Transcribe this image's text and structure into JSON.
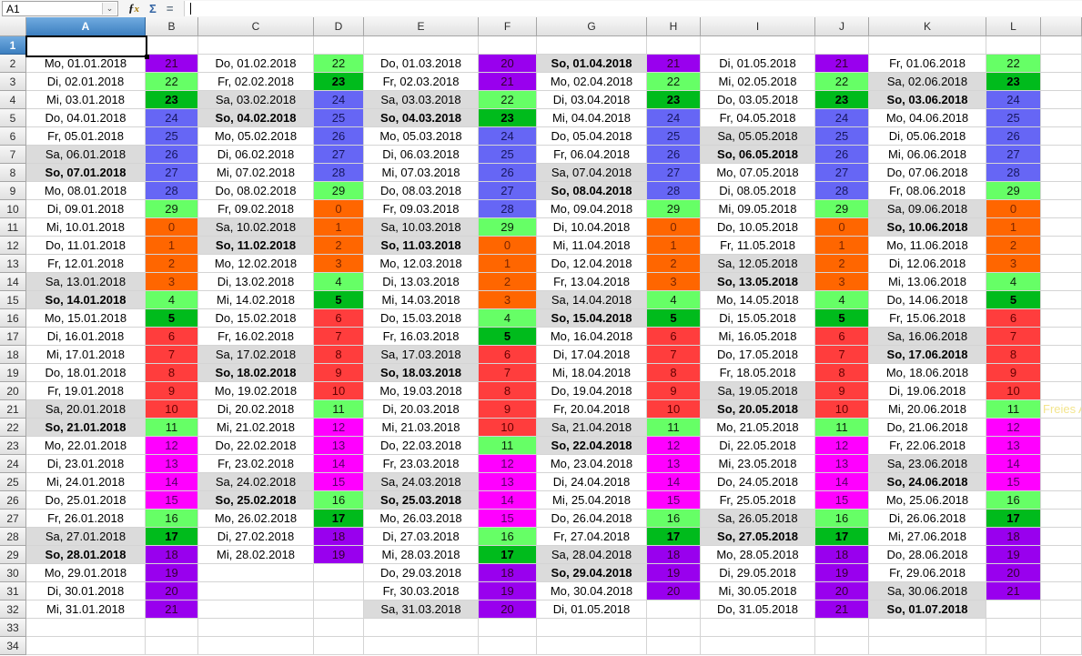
{
  "app": {
    "name_box_value": "A1",
    "formula_input_value": "",
    "icons": {
      "function_wizard": "fx",
      "sum": "Σ",
      "formula": "=",
      "namebox_dropdown": "⌄"
    }
  },
  "grid": {
    "column_headers": [
      "A",
      "B",
      "C",
      "D",
      "E",
      "F",
      "G",
      "H",
      "I",
      "J",
      "K",
      "L"
    ],
    "selected_column": "A",
    "selected_row": 1,
    "visible_rows": 34,
    "selected_cell": "A1"
  },
  "palette": {
    "orange": "#FF6600",
    "red": "#FF3D3D",
    "magenta": "#FF00FF",
    "purple": "#9900EE",
    "blue": "#6666F5",
    "lgreen": "#66FF66",
    "green": "#00BB1C",
    "weekend_gray": "#DBDBDB",
    "note_yellow": "#F3E58E"
  },
  "value_colors": {
    "0": "orange",
    "1": "orange",
    "2": "orange",
    "3": "orange",
    "4": "lgreen",
    "5": "green",
    "6": "red",
    "7": "red",
    "8": "red",
    "9": "red",
    "10": "red",
    "11": "lgreen",
    "12": "magenta",
    "13": "magenta",
    "14": "magenta",
    "15": "magenta",
    "16": "lgreen",
    "17": "green",
    "18": "purple",
    "19": "purple",
    "20": "purple",
    "21": "purple",
    "22": "lgreen",
    "23": "green",
    "24": "blue",
    "25": "blue",
    "26": "blue",
    "27": "blue",
    "28": "blue",
    "29": "lgreen"
  },
  "bold_values": [
    5,
    17,
    23
  ],
  "stray_text": {
    "text": "Freies A",
    "row": 21
  },
  "months": [
    {
      "date_col": "A",
      "value_col": "B",
      "entries": [
        {
          "d": "Mo, 01.01.2018",
          "v": 21
        },
        {
          "d": "Di, 02.01.2018",
          "v": 22
        },
        {
          "d": "Mi, 03.01.2018",
          "v": 23
        },
        {
          "d": "Do, 04.01.2018",
          "v": 24
        },
        {
          "d": "Fr, 05.01.2018",
          "v": 25
        },
        {
          "d": "Sa, 06.01.2018",
          "v": 26
        },
        {
          "d": "So, 07.01.2018",
          "v": 27
        },
        {
          "d": "Mo, 08.01.2018",
          "v": 28
        },
        {
          "d": "Di, 09.01.2018",
          "v": 29
        },
        {
          "d": "Mi, 10.01.2018",
          "v": 0
        },
        {
          "d": "Do, 11.01.2018",
          "v": 1
        },
        {
          "d": "Fr, 12.01.2018",
          "v": 2
        },
        {
          "d": "Sa, 13.01.2018",
          "v": 3
        },
        {
          "d": "So, 14.01.2018",
          "v": 4
        },
        {
          "d": "Mo, 15.01.2018",
          "v": 5
        },
        {
          "d": "Di, 16.01.2018",
          "v": 6
        },
        {
          "d": "Mi, 17.01.2018",
          "v": 7
        },
        {
          "d": "Do, 18.01.2018",
          "v": 8
        },
        {
          "d": "Fr, 19.01.2018",
          "v": 9
        },
        {
          "d": "Sa, 20.01.2018",
          "v": 10
        },
        {
          "d": "So, 21.01.2018",
          "v": 11
        },
        {
          "d": "Mo, 22.01.2018",
          "v": 12
        },
        {
          "d": "Di, 23.01.2018",
          "v": 13
        },
        {
          "d": "Mi, 24.01.2018",
          "v": 14
        },
        {
          "d": "Do, 25.01.2018",
          "v": 15
        },
        {
          "d": "Fr, 26.01.2018",
          "v": 16
        },
        {
          "d": "Sa, 27.01.2018",
          "v": 17
        },
        {
          "d": "So, 28.01.2018",
          "v": 18
        },
        {
          "d": "Mo, 29.01.2018",
          "v": 19
        },
        {
          "d": "Di, 30.01.2018",
          "v": 20
        },
        {
          "d": "Mi, 31.01.2018",
          "v": 21
        }
      ]
    },
    {
      "date_col": "C",
      "value_col": "D",
      "entries": [
        {
          "d": "Do, 01.02.2018",
          "v": 22
        },
        {
          "d": "Fr, 02.02.2018",
          "v": 23
        },
        {
          "d": "Sa, 03.02.2018",
          "v": 24
        },
        {
          "d": "So, 04.02.2018",
          "v": 25
        },
        {
          "d": "Mo, 05.02.2018",
          "v": 26
        },
        {
          "d": "Di, 06.02.2018",
          "v": 27
        },
        {
          "d": "Mi, 07.02.2018",
          "v": 28
        },
        {
          "d": "Do, 08.02.2018",
          "v": 29
        },
        {
          "d": "Fr, 09.02.2018",
          "v": 0
        },
        {
          "d": "Sa, 10.02.2018",
          "v": 1
        },
        {
          "d": "So, 11.02.2018",
          "v": 2
        },
        {
          "d": "Mo, 12.02.2018",
          "v": 3
        },
        {
          "d": "Di, 13.02.2018",
          "v": 4
        },
        {
          "d": "Mi, 14.02.2018",
          "v": 5
        },
        {
          "d": "Do, 15.02.2018",
          "v": 6
        },
        {
          "d": "Fr, 16.02.2018",
          "v": 7
        },
        {
          "d": "Sa, 17.02.2018",
          "v": 8
        },
        {
          "d": "So, 18.02.2018",
          "v": 9
        },
        {
          "d": "Mo, 19.02.2018",
          "v": 10
        },
        {
          "d": "Di, 20.02.2018",
          "v": 11
        },
        {
          "d": "Mi, 21.02.2018",
          "v": 12
        },
        {
          "d": "Do, 22.02.2018",
          "v": 13
        },
        {
          "d": "Fr, 23.02.2018",
          "v": 14
        },
        {
          "d": "Sa, 24.02.2018",
          "v": 15
        },
        {
          "d": "So, 25.02.2018",
          "v": 16
        },
        {
          "d": "Mo, 26.02.2018",
          "v": 17
        },
        {
          "d": "Di, 27.02.2018",
          "v": 18
        },
        {
          "d": "Mi, 28.02.2018",
          "v": 19
        }
      ]
    },
    {
      "date_col": "E",
      "value_col": "F",
      "entries": [
        {
          "d": "Do, 01.03.2018",
          "v": 20
        },
        {
          "d": "Fr, 02.03.2018",
          "v": 21
        },
        {
          "d": "Sa, 03.03.2018",
          "v": 22
        },
        {
          "d": "So, 04.03.2018",
          "v": 23
        },
        {
          "d": "Mo, 05.03.2018",
          "v": 24
        },
        {
          "d": "Di, 06.03.2018",
          "v": 25
        },
        {
          "d": "Mi, 07.03.2018",
          "v": 26
        },
        {
          "d": "Do, 08.03.2018",
          "v": 27
        },
        {
          "d": "Fr, 09.03.2018",
          "v": 28
        },
        {
          "d": "Sa, 10.03.2018",
          "v": 29
        },
        {
          "d": "So, 11.03.2018",
          "v": 0
        },
        {
          "d": "Mo, 12.03.2018",
          "v": 1
        },
        {
          "d": "Di, 13.03.2018",
          "v": 2
        },
        {
          "d": "Mi, 14.03.2018",
          "v": 3
        },
        {
          "d": "Do, 15.03.2018",
          "v": 4
        },
        {
          "d": "Fr, 16.03.2018",
          "v": 5
        },
        {
          "d": "Sa, 17.03.2018",
          "v": 6
        },
        {
          "d": "So, 18.03.2018",
          "v": 7
        },
        {
          "d": "Mo, 19.03.2018",
          "v": 8
        },
        {
          "d": "Di, 20.03.2018",
          "v": 9
        },
        {
          "d": "Mi, 21.03.2018",
          "v": 10
        },
        {
          "d": "Do, 22.03.2018",
          "v": 11
        },
        {
          "d": "Fr, 23.03.2018",
          "v": 12
        },
        {
          "d": "Sa, 24.03.2018",
          "v": 13
        },
        {
          "d": "So, 25.03.2018",
          "v": 14
        },
        {
          "d": "Mo, 26.03.2018",
          "v": 15
        },
        {
          "d": "Di, 27.03.2018",
          "v": 16
        },
        {
          "d": "Mi, 28.03.2018",
          "v": 17
        },
        {
          "d": "Do, 29.03.2018",
          "v": 18
        },
        {
          "d": "Fr, 30.03.2018",
          "v": 19
        },
        {
          "d": "Sa, 31.03.2018",
          "v": 20
        }
      ]
    },
    {
      "date_col": "G",
      "value_col": "H",
      "entries": [
        {
          "d": "So, 01.04.2018",
          "v": 21
        },
        {
          "d": "Mo, 02.04.2018",
          "v": 22
        },
        {
          "d": "Di, 03.04.2018",
          "v": 23
        },
        {
          "d": "Mi, 04.04.2018",
          "v": 24
        },
        {
          "d": "Do, 05.04.2018",
          "v": 25
        },
        {
          "d": "Fr, 06.04.2018",
          "v": 26
        },
        {
          "d": "Sa, 07.04.2018",
          "v": 27
        },
        {
          "d": "So, 08.04.2018",
          "v": 28
        },
        {
          "d": "Mo, 09.04.2018",
          "v": 29
        },
        {
          "d": "Di, 10.04.2018",
          "v": 0
        },
        {
          "d": "Mi, 11.04.2018",
          "v": 1
        },
        {
          "d": "Do, 12.04.2018",
          "v": 2
        },
        {
          "d": "Fr, 13.04.2018",
          "v": 3
        },
        {
          "d": "Sa, 14.04.2018",
          "v": 4
        },
        {
          "d": "So, 15.04.2018",
          "v": 5
        },
        {
          "d": "Mo, 16.04.2018",
          "v": 6
        },
        {
          "d": "Di, 17.04.2018",
          "v": 7
        },
        {
          "d": "Mi, 18.04.2018",
          "v": 8
        },
        {
          "d": "Do, 19.04.2018",
          "v": 9
        },
        {
          "d": "Fr, 20.04.2018",
          "v": 10
        },
        {
          "d": "Sa, 21.04.2018",
          "v": 11
        },
        {
          "d": "So, 22.04.2018",
          "v": 12
        },
        {
          "d": "Mo, 23.04.2018",
          "v": 13
        },
        {
          "d": "Di, 24.04.2018",
          "v": 14
        },
        {
          "d": "Mi, 25.04.2018",
          "v": 15
        },
        {
          "d": "Do, 26.04.2018",
          "v": 16
        },
        {
          "d": "Fr, 27.04.2018",
          "v": 17
        },
        {
          "d": "Sa, 28.04.2018",
          "v": 18
        },
        {
          "d": "So, 29.04.2018",
          "v": 19
        },
        {
          "d": "Mo, 30.04.2018",
          "v": 20
        },
        {
          "d": "Di, 01.05.2018",
          "v": null
        }
      ]
    },
    {
      "date_col": "I",
      "value_col": "J",
      "entries": [
        {
          "d": "Di, 01.05.2018",
          "v": 21
        },
        {
          "d": "Mi, 02.05.2018",
          "v": 22
        },
        {
          "d": "Do, 03.05.2018",
          "v": 23
        },
        {
          "d": "Fr, 04.05.2018",
          "v": 24
        },
        {
          "d": "Sa, 05.05.2018",
          "v": 25
        },
        {
          "d": "So, 06.05.2018",
          "v": 26
        },
        {
          "d": "Mo, 07.05.2018",
          "v": 27
        },
        {
          "d": "Di, 08.05.2018",
          "v": 28
        },
        {
          "d": "Mi, 09.05.2018",
          "v": 29
        },
        {
          "d": "Do, 10.05.2018",
          "v": 0
        },
        {
          "d": "Fr, 11.05.2018",
          "v": 1
        },
        {
          "d": "Sa, 12.05.2018",
          "v": 2
        },
        {
          "d": "So, 13.05.2018",
          "v": 3
        },
        {
          "d": "Mo, 14.05.2018",
          "v": 4
        },
        {
          "d": "Di, 15.05.2018",
          "v": 5
        },
        {
          "d": "Mi, 16.05.2018",
          "v": 6
        },
        {
          "d": "Do, 17.05.2018",
          "v": 7
        },
        {
          "d": "Fr, 18.05.2018",
          "v": 8
        },
        {
          "d": "Sa, 19.05.2018",
          "v": 9
        },
        {
          "d": "So, 20.05.2018",
          "v": 10
        },
        {
          "d": "Mo, 21.05.2018",
          "v": 11
        },
        {
          "d": "Di, 22.05.2018",
          "v": 12
        },
        {
          "d": "Mi, 23.05.2018",
          "v": 13
        },
        {
          "d": "Do, 24.05.2018",
          "v": 14
        },
        {
          "d": "Fr, 25.05.2018",
          "v": 15
        },
        {
          "d": "Sa, 26.05.2018",
          "v": 16
        },
        {
          "d": "So, 27.05.2018",
          "v": 17
        },
        {
          "d": "Mo, 28.05.2018",
          "v": 18
        },
        {
          "d": "Di, 29.05.2018",
          "v": 19
        },
        {
          "d": "Mi, 30.05.2018",
          "v": 20
        },
        {
          "d": "Do, 31.05.2018",
          "v": 21
        }
      ]
    },
    {
      "date_col": "K",
      "value_col": "L",
      "entries": [
        {
          "d": "Fr, 01.06.2018",
          "v": 22
        },
        {
          "d": "Sa, 02.06.2018",
          "v": 23
        },
        {
          "d": "So, 03.06.2018",
          "v": 24
        },
        {
          "d": "Mo, 04.06.2018",
          "v": 25
        },
        {
          "d": "Di, 05.06.2018",
          "v": 26
        },
        {
          "d": "Mi, 06.06.2018",
          "v": 27
        },
        {
          "d": "Do, 07.06.2018",
          "v": 28
        },
        {
          "d": "Fr, 08.06.2018",
          "v": 29
        },
        {
          "d": "Sa, 09.06.2018",
          "v": 0
        },
        {
          "d": "So, 10.06.2018",
          "v": 1
        },
        {
          "d": "Mo, 11.06.2018",
          "v": 2
        },
        {
          "d": "Di, 12.06.2018",
          "v": 3
        },
        {
          "d": "Mi, 13.06.2018",
          "v": 4
        },
        {
          "d": "Do, 14.06.2018",
          "v": 5
        },
        {
          "d": "Fr, 15.06.2018",
          "v": 6
        },
        {
          "d": "Sa, 16.06.2018",
          "v": 7
        },
        {
          "d": "So, 17.06.2018",
          "v": 8
        },
        {
          "d": "Mo, 18.06.2018",
          "v": 9
        },
        {
          "d": "Di, 19.06.2018",
          "v": 10
        },
        {
          "d": "Mi, 20.06.2018",
          "v": 11
        },
        {
          "d": "Do, 21.06.2018",
          "v": 12
        },
        {
          "d": "Fr, 22.06.2018",
          "v": 13
        },
        {
          "d": "Sa, 23.06.2018",
          "v": 14
        },
        {
          "d": "So, 24.06.2018",
          "v": 15
        },
        {
          "d": "Mo, 25.06.2018",
          "v": 16
        },
        {
          "d": "Di, 26.06.2018",
          "v": 17
        },
        {
          "d": "Mi, 27.06.2018",
          "v": 18
        },
        {
          "d": "Do, 28.06.2018",
          "v": 19
        },
        {
          "d": "Fr, 29.06.2018",
          "v": 20
        },
        {
          "d": "Sa, 30.06.2018",
          "v": 21
        },
        {
          "d": "So, 01.07.2018",
          "v": null
        }
      ]
    }
  ]
}
